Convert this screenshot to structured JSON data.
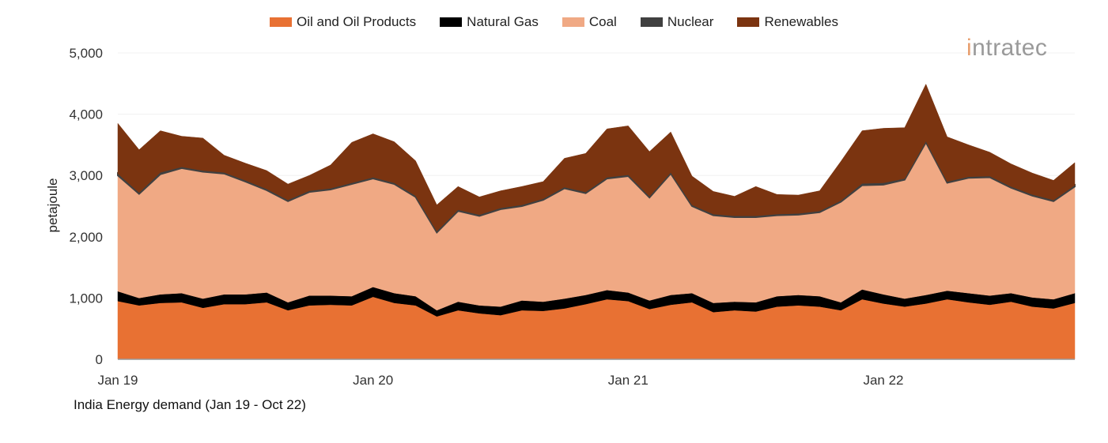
{
  "chart_data": {
    "type": "area",
    "stacked": true,
    "title": "India Energy demand (Jan 19 - Oct 22)",
    "xlabel": "",
    "ylabel": "petajoule",
    "ylim": [
      0,
      5000
    ],
    "yticks": [
      "0",
      "1,000",
      "2,000",
      "3,000",
      "4,000",
      "5,000"
    ],
    "xticks": [
      "Jan 19",
      "Jan 20",
      "Jan 21",
      "Jan 22"
    ],
    "x_range": [
      "Jan 19",
      "Oct 22"
    ],
    "grid": true,
    "legend_position": "top",
    "series": [
      {
        "name": "Oil and Oil Products",
        "color": "#E87133",
        "values": [
          950,
          880,
          920,
          930,
          840,
          900,
          900,
          930,
          800,
          880,
          890,
          880,
          1020,
          920,
          880,
          700,
          800,
          750,
          720,
          800,
          790,
          830,
          900,
          980,
          950,
          820,
          890,
          930,
          770,
          800,
          780,
          860,
          880,
          860,
          800,
          980,
          910,
          860,
          910,
          980,
          930,
          890,
          940,
          860,
          830,
          920
        ]
      },
      {
        "name": "Natural Gas",
        "color": "#000000",
        "values": [
          160,
          120,
          140,
          150,
          150,
          160,
          160,
          160,
          130,
          160,
          150,
          150,
          160,
          160,
          150,
          100,
          140,
          130,
          140,
          160,
          150,
          160,
          150,
          150,
          140,
          140,
          160,
          150,
          150,
          140,
          150,
          170,
          170,
          170,
          130,
          160,
          150,
          130,
          140,
          140,
          150,
          150,
          140,
          150,
          150,
          160
        ]
      },
      {
        "name": "Coal",
        "color": "#F0A984",
        "values": [
          1890,
          1700,
          1960,
          2040,
          2070,
          1970,
          1840,
          1670,
          1650,
          1690,
          1730,
          1830,
          1770,
          1780,
          1620,
          1270,
          1480,
          1460,
          1590,
          1540,
          1660,
          1800,
          1660,
          1820,
          1900,
          1680,
          1980,
          1420,
          1430,
          1380,
          1390,
          1320,
          1310,
          1370,
          1640,
          1700,
          1790,
          1940,
          2490,
          1760,
          1880,
          1930,
          1720,
          1660,
          1600,
          1740
        ]
      },
      {
        "name": "Nuclear",
        "color": "#404040",
        "values": [
          30,
          20,
          30,
          20,
          20,
          20,
          20,
          20,
          20,
          20,
          20,
          20,
          20,
          20,
          20,
          20,
          20,
          20,
          20,
          20,
          20,
          20,
          20,
          20,
          20,
          20,
          20,
          20,
          20,
          20,
          20,
          20,
          20,
          20,
          20,
          30,
          30,
          20,
          20,
          20,
          20,
          20,
          20,
          20,
          20,
          20
        ]
      },
      {
        "name": "Renewables",
        "color": "#7B3410",
        "values": [
          820,
          700,
          680,
          500,
          530,
          280,
          280,
          300,
          260,
          250,
          380,
          660,
          710,
          670,
          570,
          430,
          380,
          290,
          280,
          300,
          280,
          470,
          630,
          790,
          800,
          730,
          660,
          470,
          370,
          320,
          480,
          320,
          300,
          330,
          640,
          860,
          890,
          830,
          930,
          730,
          520,
          390,
          370,
          350,
          320,
          370
        ]
      }
    ]
  },
  "logo": {
    "text": "intratec"
  }
}
